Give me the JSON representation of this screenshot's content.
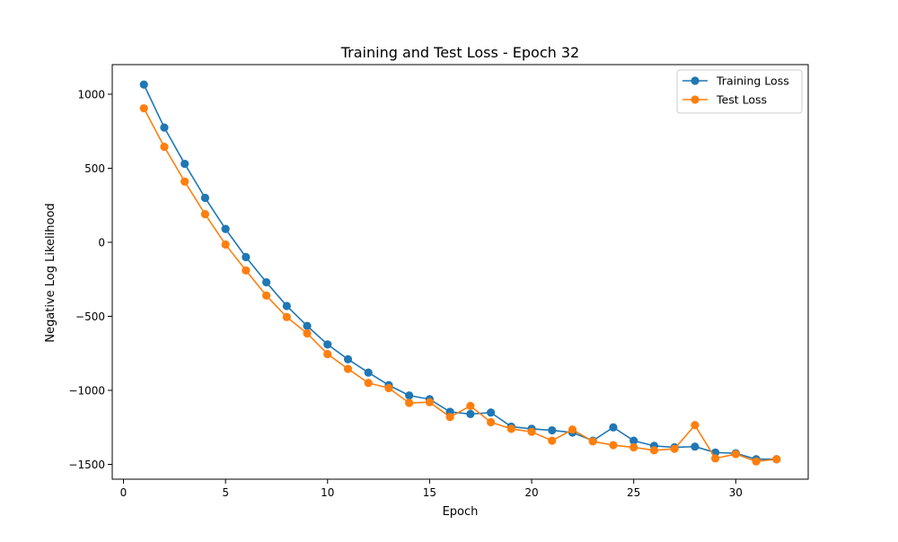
{
  "chart_data": {
    "type": "line",
    "title": "Training and Test Loss - Epoch 32",
    "xlabel": "Epoch",
    "ylabel": "Negative Log Likelihood",
    "xlim": [
      -0.55,
      33.55
    ],
    "ylim": [
      -1600,
      1200
    ],
    "xticks": [
      0,
      5,
      10,
      15,
      20,
      25,
      30
    ],
    "yticks": [
      -1500,
      -1000,
      -500,
      0,
      500,
      1000
    ],
    "grid": false,
    "legend_position": "upper right",
    "x": [
      1,
      2,
      3,
      4,
      5,
      6,
      7,
      8,
      9,
      10,
      11,
      12,
      13,
      14,
      15,
      16,
      17,
      18,
      19,
      20,
      21,
      22,
      23,
      24,
      25,
      26,
      27,
      28,
      29,
      30,
      31,
      32
    ],
    "series": [
      {
        "name": "Training Loss",
        "color": "#1f77b4",
        "marker": "circle",
        "values": [
          1065,
          775,
          530,
          300,
          90,
          -100,
          -270,
          -430,
          -565,
          -690,
          -790,
          -880,
          -965,
          -1035,
          -1060,
          -1145,
          -1160,
          -1150,
          -1245,
          -1260,
          -1270,
          -1285,
          -1340,
          -1250,
          -1340,
          -1375,
          -1385,
          -1380,
          -1420,
          -1425,
          -1465,
          -1465
        ]
      },
      {
        "name": "Test Loss",
        "color": "#ff7f0e",
        "marker": "circle",
        "values": [
          905,
          645,
          410,
          190,
          -15,
          -190,
          -360,
          -505,
          -615,
          -755,
          -855,
          -950,
          -985,
          -1085,
          -1080,
          -1180,
          -1105,
          -1215,
          -1260,
          -1280,
          -1340,
          -1265,
          -1345,
          -1370,
          -1385,
          -1405,
          -1395,
          -1235,
          -1460,
          -1430,
          -1480,
          -1465
        ]
      }
    ]
  }
}
